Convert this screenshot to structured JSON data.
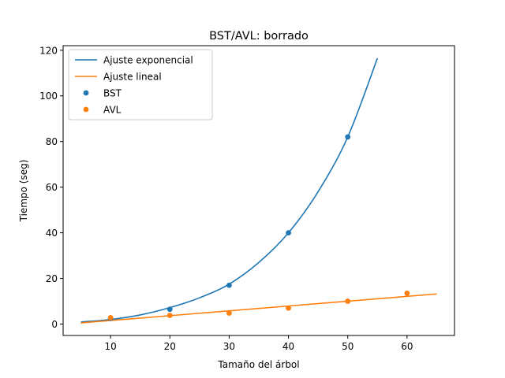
{
  "chart_data": {
    "type": "line",
    "title": "BST/AVL: borrado",
    "xlabel": "Tamaño del árbol",
    "ylabel": "Tiempo (seg)",
    "xlim": [
      2,
      68
    ],
    "ylim": [
      -5,
      122
    ],
    "xticks": [
      10,
      20,
      30,
      40,
      50,
      60
    ],
    "yticks": [
      0,
      20,
      40,
      60,
      80,
      100,
      120
    ],
    "grid": false,
    "legend_position": "top-left",
    "colors": {
      "blue": "#1f77b4",
      "orange": "#ff7f0e"
    },
    "series": [
      {
        "name": "Ajuste exponencial",
        "kind": "line",
        "color": "#1f77b4",
        "x": [
          5,
          10,
          15,
          20,
          25,
          30,
          35,
          40,
          45,
          50,
          55
        ],
        "y": [
          0.9,
          2.0,
          4.0,
          7.2,
          11.5,
          17.5,
          27.0,
          40.0,
          58.0,
          82.0,
          116.5
        ]
      },
      {
        "name": "Ajuste lineal",
        "kind": "line",
        "color": "#ff7f0e",
        "x": [
          5,
          65
        ],
        "y": [
          0.5,
          13.2
        ]
      },
      {
        "name": "BST",
        "kind": "scatter",
        "color": "#1f77b4",
        "x": [
          10,
          20,
          30,
          40,
          50
        ],
        "y": [
          2.5,
          6.5,
          17.0,
          40.0,
          82.0
        ]
      },
      {
        "name": "AVL",
        "kind": "scatter",
        "color": "#ff7f0e",
        "x": [
          10,
          20,
          30,
          40,
          50,
          60
        ],
        "y": [
          2.8,
          3.8,
          4.8,
          7.0,
          10.0,
          13.5
        ]
      }
    ]
  }
}
